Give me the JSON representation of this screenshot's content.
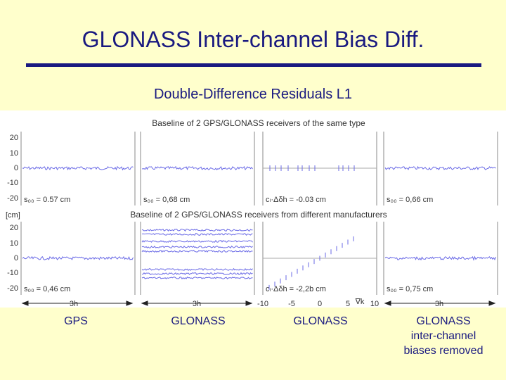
{
  "slide": {
    "title": "GLONASS Inter-channel Bias Diff.",
    "subtitle": "Double-Difference Residuals L1"
  },
  "figure": {
    "top_heading": "Baseline  of 2 GPS/GLONASS receivers of the same type",
    "mid_heading": "Baseline of 2 GPS/GLONASS receivers from different manufacturers",
    "unit_label": "[cm]",
    "y_ticks_top": [
      "20",
      "10",
      "0",
      "-10",
      "-20"
    ],
    "y_ticks_bottom": [
      "20",
      "10",
      "0",
      "-10",
      "-20"
    ],
    "top_row_stats": [
      "s₀₀ = 0.57 cm",
      "s₀₀ = 0,68 cm",
      "cₗ·Δδh = -0.03 cm",
      "s₀₀ = 0,66 cm"
    ],
    "bottom_row_stats": [
      "s₀₀ = 0,46 cm",
      "",
      "cₗ·Δδh = -2,2b cm",
      "s₀₀ = 0,75 cm"
    ],
    "span_labels": [
      "3h",
      "3h",
      "3h"
    ],
    "k_ticks": [
      "-10",
      "-5",
      "0",
      "5",
      "10"
    ],
    "k_label": "∇k",
    "line_color": "#6a6ae6"
  },
  "captions": {
    "col1": "GPS",
    "col2": "GLONASS",
    "col3": "GLONASS",
    "col4": "GLONASS\ninter-channel\nbiases removed"
  }
}
